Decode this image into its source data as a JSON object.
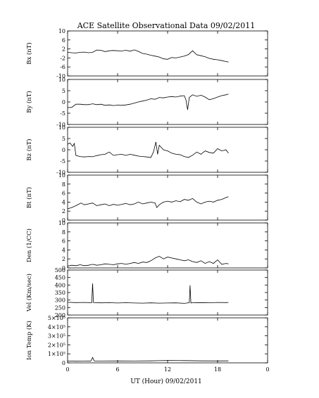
{
  "title": "ACE Satellite Observational Data   09/02/2011",
  "xlabel": "UT (Hour)  09/02/2011",
  "x_ticks": [
    "0",
    "6",
    "12",
    "18",
    "0"
  ],
  "chart_data": [
    {
      "type": "line",
      "ylabel": "Bx (nT)",
      "ylim": [
        -10,
        10
      ],
      "yticks": [
        "10",
        "6",
        "2",
        "-2",
        "-6",
        "-10"
      ],
      "xlim": [
        0,
        24
      ],
      "series": [
        {
          "x": [
            0,
            0.5,
            1,
            1.5,
            2,
            2.5,
            3,
            3.5,
            4,
            4.5,
            5,
            5.5,
            6,
            6.5,
            7,
            7.5,
            8,
            8.5,
            9,
            9.5,
            10,
            10.5,
            11,
            11.5,
            12,
            12.5,
            13,
            13.5,
            14,
            14.5,
            15,
            15.5,
            16,
            16.5,
            17,
            17.5,
            18,
            18.5,
            19,
            19.3
          ],
          "y": [
            0.5,
            0.3,
            0.2,
            0.5,
            0.6,
            0.3,
            0.5,
            1.5,
            1.4,
            0.8,
            1.2,
            1.3,
            1.2,
            1.1,
            1.4,
            1.0,
            1.6,
            0.9,
            0.0,
            -0.3,
            -0.8,
            -1.2,
            -1.6,
            -2.4,
            -2.6,
            -1.8,
            -2.0,
            -1.6,
            -1.2,
            -0.5,
            1.2,
            -0.6,
            -1.0,
            -1.5,
            -2.2,
            -2.6,
            -2.8,
            -3.2,
            -3.6,
            -3.8
          ]
        }
      ]
    },
    {
      "type": "line",
      "ylabel": "By (nT)",
      "ylim": [
        -10,
        10
      ],
      "yticks": [
        "10",
        "5",
        "0",
        "-5",
        "-10"
      ],
      "xlim": [
        0,
        24
      ],
      "series": [
        {
          "x": [
            0,
            0.5,
            1,
            1.5,
            2,
            2.5,
            3,
            3.5,
            4,
            4.5,
            5,
            5.5,
            6,
            6.5,
            7,
            7.5,
            8,
            8.5,
            9,
            9.5,
            10,
            10.5,
            11,
            11.5,
            12,
            12.5,
            13,
            13.5,
            14,
            14.2,
            14.4,
            14.6,
            15,
            15.5,
            16,
            16.5,
            17,
            17.5,
            18,
            18.5,
            19,
            19.3
          ],
          "y": [
            -2.5,
            -2.4,
            -1.0,
            -1.0,
            -1.2,
            -1.2,
            -0.8,
            -1.2,
            -1.0,
            -1.5,
            -1.3,
            -1.6,
            -1.4,
            -1.5,
            -1.3,
            -1.0,
            -0.5,
            0.0,
            0.4,
            0.8,
            1.4,
            1.2,
            2.0,
            1.8,
            2.2,
            2.4,
            2.2,
            2.6,
            2.8,
            1.0,
            -3.5,
            2.0,
            3.2,
            2.5,
            3.0,
            2.2,
            1.0,
            1.5,
            2.2,
            2.8,
            3.2,
            3.5
          ]
        }
      ]
    },
    {
      "type": "line",
      "ylabel": "Bz (nT)",
      "ylim": [
        -10,
        10
      ],
      "yticks": [
        "10",
        "5",
        "0",
        "-5",
        "-10"
      ],
      "xlim": [
        0,
        24
      ],
      "series": [
        {
          "x": [
            0,
            0.3,
            0.6,
            0.8,
            1.0,
            1.5,
            2,
            2.5,
            3,
            3.5,
            4,
            4.5,
            5,
            5.5,
            6,
            6.5,
            7,
            7.5,
            8,
            8.5,
            9,
            9.5,
            10,
            10.3,
            10.6,
            10.8,
            11,
            11.5,
            12,
            12.5,
            13,
            13.5,
            14,
            14.5,
            15,
            15.5,
            16,
            16.5,
            17,
            17.5,
            18,
            18.5,
            19,
            19.3
          ],
          "y": [
            2.5,
            3.0,
            1.5,
            2.8,
            -2.5,
            -3.0,
            -3.2,
            -3.0,
            -3.1,
            -2.6,
            -2.2,
            -2.0,
            -1.0,
            -2.5,
            -2.2,
            -2.0,
            -2.5,
            -2.0,
            -2.4,
            -2.8,
            -3.0,
            -3.2,
            -3.4,
            -1.0,
            3.5,
            -2.0,
            2.0,
            0.0,
            -0.5,
            -1.5,
            -2.0,
            -2.2,
            -3.0,
            -3.4,
            -2.4,
            -1.0,
            -2.0,
            -0.5,
            -1.2,
            -1.5,
            0.5,
            -0.5,
            0.0,
            -1.5
          ]
        }
      ]
    },
    {
      "type": "line",
      "ylabel": "Bt (nT)",
      "ylim": [
        0,
        10
      ],
      "yticks": [
        "10",
        "8",
        "6",
        "4",
        "2",
        "0"
      ],
      "xlim": [
        0,
        24
      ],
      "series": [
        {
          "x": [
            0,
            0.5,
            1,
            1.3,
            1.6,
            2,
            2.5,
            3,
            3.5,
            4,
            4.5,
            5,
            5.5,
            6,
            6.5,
            7,
            7.5,
            8,
            8.5,
            9,
            9.5,
            10,
            10.5,
            10.7,
            11,
            11.5,
            12,
            12.5,
            13,
            13.5,
            14,
            14.5,
            15,
            15.5,
            16,
            16.5,
            17,
            17.5,
            18,
            18.5,
            19,
            19.3
          ],
          "y": [
            2.5,
            2.8,
            3.2,
            3.5,
            3.8,
            3.4,
            3.6,
            3.8,
            3.2,
            3.4,
            3.6,
            3.2,
            3.5,
            3.3,
            3.5,
            3.7,
            3.4,
            3.6,
            4.0,
            3.6,
            3.8,
            4.0,
            3.8,
            2.8,
            3.4,
            4.0,
            4.2,
            4.0,
            4.3,
            4.1,
            4.6,
            4.4,
            4.8,
            4.0,
            3.6,
            4.0,
            4.2,
            4.0,
            4.4,
            4.6,
            5.0,
            5.2
          ]
        }
      ]
    },
    {
      "type": "line",
      "ylabel": "Den (1/CC)",
      "ylim": [
        0,
        10
      ],
      "yticks": [
        "10",
        "8",
        "6",
        "4",
        "2",
        "0"
      ],
      "xlim": [
        0,
        24
      ],
      "series": [
        {
          "x": [
            0,
            0.5,
            1,
            1.5,
            2,
            2.5,
            3,
            3.5,
            4,
            4.5,
            5,
            5.5,
            6,
            6.5,
            7,
            7.5,
            8,
            8.5,
            9,
            9.5,
            10,
            10.5,
            11,
            11.5,
            12,
            12.5,
            13,
            13.5,
            14,
            14.5,
            15,
            15.5,
            16,
            16.5,
            17,
            17.5,
            18,
            18.5,
            19,
            19.3
          ],
          "y": [
            0.4,
            0.6,
            0.5,
            0.7,
            0.5,
            0.6,
            0.8,
            0.6,
            0.7,
            0.9,
            0.8,
            0.7,
            0.9,
            1.0,
            0.8,
            1.0,
            1.2,
            1.0,
            1.3,
            1.2,
            1.6,
            2.2,
            2.6,
            2.0,
            2.4,
            2.2,
            2.0,
            1.8,
            1.6,
            1.8,
            1.4,
            1.2,
            1.6,
            1.0,
            1.4,
            1.0,
            1.8,
            0.8,
            1.0,
            0.9
          ]
        }
      ]
    },
    {
      "type": "line",
      "ylabel": "Vel (Km/sec)",
      "ylim": [
        200,
        500
      ],
      "yticks": [
        "500",
        "450",
        "400",
        "350",
        "300",
        "250",
        "200"
      ],
      "xlim": [
        0,
        24
      ],
      "series": [
        {
          "x": [
            0,
            1,
            2,
            2.9,
            3.0,
            3.1,
            4,
            5,
            6,
            7,
            8,
            9,
            10,
            11,
            12,
            13,
            14,
            14.6,
            14.7,
            14.8,
            15,
            16,
            17,
            18,
            19,
            19.3
          ],
          "y": [
            285,
            283,
            284,
            282,
            410,
            283,
            281,
            282,
            280,
            282,
            280,
            279,
            281,
            279,
            280,
            281,
            278,
            282,
            398,
            280,
            282,
            283,
            282,
            284,
            283,
            284
          ]
        }
      ]
    },
    {
      "type": "line",
      "ylabel": "Ion Temp (K)",
      "ylim": [
        0,
        500000
      ],
      "yticks": [
        "5×10⁵",
        "4×10⁵",
        "3×10⁵",
        "2×10⁵",
        "1×10⁵",
        "0"
      ],
      "xlim": [
        0,
        24
      ],
      "series": [
        {
          "x": [
            0,
            1,
            2,
            2.8,
            3.0,
            3.2,
            4,
            6,
            8,
            10,
            11,
            12,
            14,
            16,
            18,
            19.3
          ],
          "y": [
            20000,
            18000,
            19000,
            20000,
            60000,
            20000,
            20000,
            21000,
            20000,
            22000,
            24000,
            26000,
            25000,
            22000,
            21000,
            22000
          ]
        }
      ]
    }
  ]
}
